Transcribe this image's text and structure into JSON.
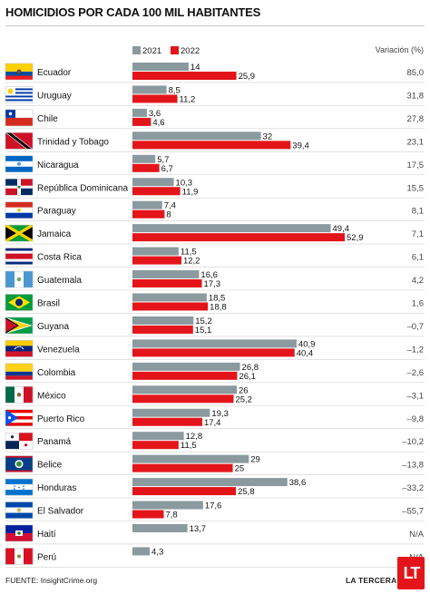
{
  "title": "HOMICIDIOS POR CADA 100 MIL HABITANTES",
  "header": {
    "variation_label": "Variación (%)"
  },
  "footer": {
    "source": "FUENTE: InsightCrime.org",
    "brand": "LA TERCERA",
    "logo": "LT"
  },
  "colors": {
    "series_2021": "#8a9a9e",
    "series_2022": "#e3151a",
    "divider": "#d0d0d0",
    "text": "#111111",
    "variation_text": "#444444"
  },
  "chart_data": {
    "type": "bar",
    "orientation": "horizontal",
    "title": "HOMICIDIOS POR CADA 100 MIL HABITANTES",
    "xlabel": "",
    "ylabel": "",
    "xlim": [
      0,
      52.9
    ],
    "legend_position": "top",
    "grid": false,
    "categories": [
      "Ecuador",
      "Uruguay",
      "Chile",
      "Trinidad y Tobago",
      "Nicaragua",
      "República Dominicana",
      "Paraguay",
      "Jamaica",
      "Costa Rica",
      "Guatemala",
      "Brasil",
      "Guyana",
      "Venezuela",
      "Colombia",
      "México",
      "Puerto Rico",
      "Panamá",
      "Belice",
      "Honduras",
      "El Salvador",
      "Haití",
      "Perú"
    ],
    "series": [
      {
        "name": "2021",
        "values": [
          14,
          8.5,
          3.6,
          32,
          5.7,
          10.3,
          7.4,
          49.4,
          11.5,
          16.6,
          18.5,
          15.2,
          40.9,
          26.8,
          26,
          19.3,
          12.8,
          29,
          38.6,
          17.6,
          13.7,
          4.3
        ],
        "labels": [
          "14",
          "8,5",
          "3,6",
          "32",
          "5,7",
          "10,3",
          "7,4",
          "49,4",
          "11,5",
          "16,6",
          "18,5",
          "15,2",
          "40,9",
          "26,8",
          "26",
          "19,3",
          "12,8",
          "29",
          "38,6",
          "17,6",
          "13,7",
          "4,3"
        ]
      },
      {
        "name": "2022",
        "values": [
          25.9,
          11.2,
          4.6,
          39.4,
          6.7,
          11.9,
          8,
          52.9,
          12.2,
          17.3,
          18.8,
          15.1,
          40.4,
          26.1,
          25.2,
          17.4,
          11.5,
          25,
          25.8,
          7.8,
          null,
          null
        ],
        "labels": [
          "25,9",
          "11,2",
          "4,6",
          "39,4",
          "6,7",
          "11,9",
          "8",
          "52,9",
          "12,2",
          "17,3",
          "18,8",
          "15,1",
          "40,4",
          "26,1",
          "25,2",
          "17,4",
          "11,5",
          "25",
          "25,8",
          "7,8",
          "",
          ""
        ]
      }
    ],
    "variation": [
      "85,0",
      "31,8",
      "27,8",
      "23,1",
      "17,5",
      "15,5",
      "8,1",
      "7,1",
      "6,1",
      "4,2",
      "1,6",
      "–0,7",
      "–1,2",
      "–2,6",
      "–3,1",
      "–9,8",
      "–10,2",
      "–13,8",
      "–33,2",
      "–55,7",
      "N/A",
      "N/A"
    ],
    "flags": [
      "ecuador-flag-icon",
      "uruguay-flag-icon",
      "chile-flag-icon",
      "trinidad-flag-icon",
      "nicaragua-flag-icon",
      "dominican-republic-flag-icon",
      "paraguay-flag-icon",
      "jamaica-flag-icon",
      "costa-rica-flag-icon",
      "guatemala-flag-icon",
      "brazil-flag-icon",
      "guyana-flag-icon",
      "venezuela-flag-icon",
      "colombia-flag-icon",
      "mexico-flag-icon",
      "puerto-rico-flag-icon",
      "panama-flag-icon",
      "belize-flag-icon",
      "honduras-flag-icon",
      "el-salvador-flag-icon",
      "haiti-flag-icon",
      "peru-flag-icon"
    ]
  }
}
